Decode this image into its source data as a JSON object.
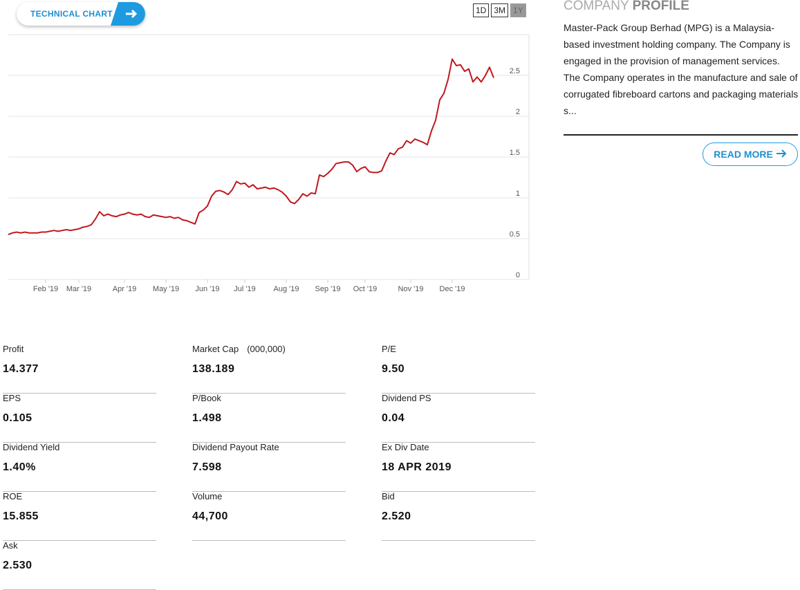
{
  "header": {
    "chart_button": "TECHNICAL CHART",
    "ranges": [
      "1D",
      "3M",
      "1Y"
    ]
  },
  "chart_data": {
    "type": "line",
    "color": "#c0171c",
    "categories": [
      null,
      null,
      null,
      null,
      null,
      null,
      null,
      null,
      null,
      "Feb '19",
      null,
      null,
      null,
      null,
      null,
      null,
      null,
      "Mar '19",
      null,
      null,
      null,
      null,
      null,
      null,
      null,
      null,
      null,
      null,
      "Apr '19",
      null,
      null,
      null,
      null,
      null,
      null,
      null,
      null,
      null,
      "May '19",
      null,
      null,
      null,
      null,
      null,
      null,
      null,
      null,
      null,
      "Jun '19",
      null,
      null,
      null,
      null,
      null,
      null,
      null,
      null,
      "Jul '19",
      null,
      null,
      null,
      null,
      null,
      null,
      null,
      null,
      null,
      "Aug '19",
      null,
      null,
      null,
      null,
      null,
      null,
      null,
      null,
      null,
      "Sep '19",
      null,
      null,
      null,
      null,
      null,
      null,
      null,
      null,
      "Oct '19",
      null,
      null,
      null,
      null,
      null,
      null,
      null,
      null,
      null,
      null,
      "Nov '19",
      null,
      null,
      null,
      null,
      null,
      null,
      null,
      null,
      null,
      "Dec '19",
      null,
      null,
      null,
      null,
      null,
      null,
      null,
      null,
      null,
      null
    ],
    "values": [
      0.55,
      0.57,
      0.58,
      0.57,
      0.58,
      0.57,
      0.57,
      0.57,
      0.58,
      0.58,
      0.59,
      0.6,
      0.59,
      0.6,
      0.61,
      0.6,
      0.61,
      0.62,
      0.64,
      0.65,
      0.67,
      0.74,
      0.83,
      0.78,
      0.8,
      0.78,
      0.77,
      0.79,
      0.8,
      0.82,
      0.8,
      0.79,
      0.8,
      0.77,
      0.76,
      0.79,
      0.78,
      0.77,
      0.76,
      0.77,
      0.75,
      0.76,
      0.73,
      0.72,
      0.7,
      0.68,
      0.82,
      0.85,
      0.9,
      1.02,
      1.08,
      1.09,
      1.07,
      1.04,
      1.1,
      1.2,
      1.17,
      1.18,
      1.13,
      1.16,
      1.11,
      1.12,
      1.13,
      1.11,
      1.12,
      1.1,
      1.07,
      1.02,
      0.95,
      0.93,
      0.98,
      1.05,
      1.02,
      1.06,
      1.05,
      1.28,
      1.26,
      1.3,
      1.35,
      1.42,
      1.43,
      1.44,
      1.44,
      1.4,
      1.32,
      1.36,
      1.38,
      1.32,
      1.31,
      1.31,
      1.33,
      1.45,
      1.55,
      1.53,
      1.6,
      1.62,
      1.7,
      1.67,
      1.72,
      1.7,
      1.68,
      1.65,
      1.82,
      1.95,
      2.2,
      2.28,
      2.45,
      2.7,
      2.62,
      2.63,
      2.55,
      2.58,
      2.42,
      2.48,
      2.42,
      2.5,
      2.6,
      2.47
    ],
    "ylim": [
      0,
      3
    ],
    "yticks": [
      0,
      0.5,
      1,
      1.5,
      2,
      2.5
    ],
    "grid": true
  },
  "profile": {
    "title_light": "COMPANY",
    "title_bold": "PROFILE",
    "description": "Master-Pack Group Berhad (MPG) is a Malaysia-based investment holding company. The Company is engaged in the provision of management services. The Company operates in the manufacture and sale of corrugated fibreboard cartons and packaging materials s...",
    "button": "READ MORE"
  },
  "stats": [
    {
      "label": "Profit",
      "value": "14.377"
    },
    {
      "label": "Market Cap",
      "note": "(000,000)",
      "value": "138.189"
    },
    {
      "label": "P/E",
      "value": "9.50"
    },
    {
      "label": "EPS",
      "value": "0.105"
    },
    {
      "label": "P/Book",
      "value": "1.498"
    },
    {
      "label": "Dividend PS",
      "value": "0.04"
    },
    {
      "label": "Dividend Yield",
      "value": "1.40%"
    },
    {
      "label": "Dividend Payout Rate",
      "value": "7.598"
    },
    {
      "label": "Ex Div Date",
      "value": "18 APR 2019"
    },
    {
      "label": "ROE",
      "value": "15.855"
    },
    {
      "label": "Volume",
      "value": "44,700"
    },
    {
      "label": "Bid",
      "value": "2.520"
    },
    {
      "label": "Ask",
      "value": "2.530"
    }
  ]
}
